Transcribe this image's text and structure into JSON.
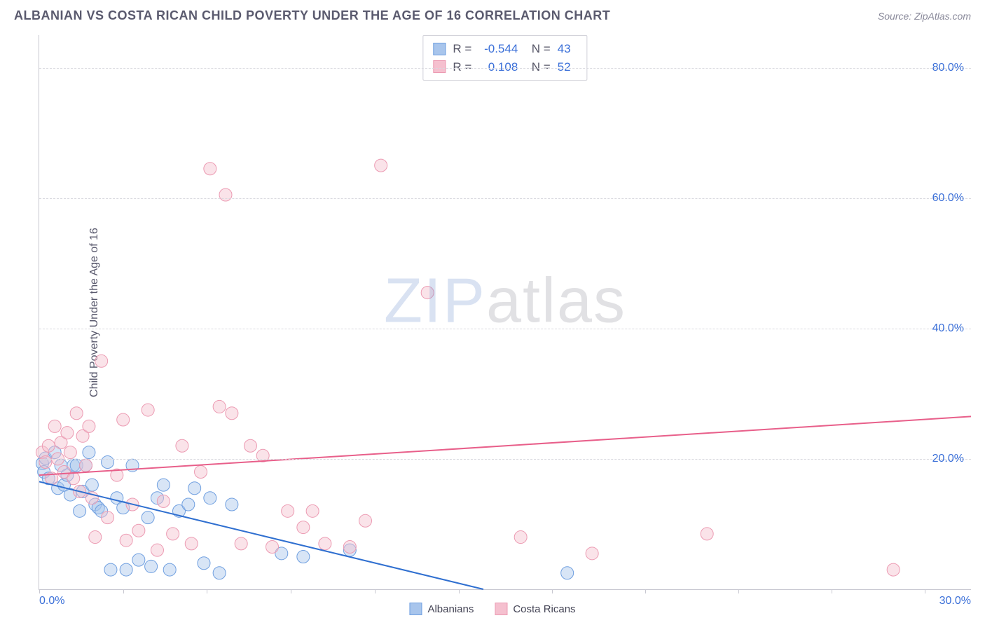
{
  "header": {
    "title": "ALBANIAN VS COSTA RICAN CHILD POVERTY UNDER THE AGE OF 16 CORRELATION CHART",
    "source": "Source: ZipAtlas.com"
  },
  "ylabel": "Child Poverty Under the Age of 16",
  "watermark": {
    "zip": "ZIP",
    "atlas": "atlas"
  },
  "chart": {
    "type": "scatter",
    "xlim": [
      0,
      30
    ],
    "ylim": [
      0,
      85
    ],
    "xtick_positions": [
      0,
      2.7,
      5.4,
      8.1,
      10.8,
      13.5,
      16.5,
      19.5,
      22.5,
      25.5,
      28.5
    ],
    "xtick_labels": {
      "0": "0.0%",
      "30": "30.0%"
    },
    "ytick_positions": [
      20,
      40,
      60,
      80
    ],
    "ytick_labels": [
      "20.0%",
      "40.0%",
      "60.0%",
      "80.0%"
    ],
    "grid_color": "#d8d8de",
    "axis_color": "#c7c7d0",
    "background_color": "#ffffff",
    "marker_radius": 9,
    "marker_opacity": 0.45,
    "line_width": 2,
    "series": [
      {
        "name": "Albanians",
        "color_fill": "#a8c5ec",
        "color_stroke": "#6f9fe0",
        "line_color": "#2f6fd0",
        "r_value": "-0.544",
        "n_value": "43",
        "trend": {
          "x1": 0,
          "y1": 16.5,
          "x2": 14.3,
          "y2": 0
        },
        "points": [
          [
            0.1,
            19.3
          ],
          [
            0.2,
            20.1
          ],
          [
            0.15,
            18.0
          ],
          [
            0.3,
            17.0
          ],
          [
            0.5,
            21.0
          ],
          [
            0.6,
            15.5
          ],
          [
            0.7,
            19.0
          ],
          [
            0.8,
            16.0
          ],
          [
            0.9,
            17.5
          ],
          [
            1.0,
            14.5
          ],
          [
            1.1,
            19.0
          ],
          [
            1.2,
            19.0
          ],
          [
            1.3,
            12.0
          ],
          [
            1.4,
            15.0
          ],
          [
            1.5,
            19.0
          ],
          [
            1.6,
            21.0
          ],
          [
            1.7,
            16.0
          ],
          [
            1.8,
            13.0
          ],
          [
            1.9,
            12.5
          ],
          [
            2.0,
            12.0
          ],
          [
            2.2,
            19.5
          ],
          [
            2.3,
            3.0
          ],
          [
            2.5,
            14.0
          ],
          [
            2.7,
            12.5
          ],
          [
            2.8,
            3.0
          ],
          [
            3.0,
            19.0
          ],
          [
            3.2,
            4.5
          ],
          [
            3.5,
            11.0
          ],
          [
            3.6,
            3.5
          ],
          [
            3.8,
            14.0
          ],
          [
            4.0,
            16.0
          ],
          [
            4.2,
            3.0
          ],
          [
            4.5,
            12.0
          ],
          [
            4.8,
            13.0
          ],
          [
            5.0,
            15.5
          ],
          [
            5.3,
            4.0
          ],
          [
            5.5,
            14.0
          ],
          [
            5.8,
            2.5
          ],
          [
            6.2,
            13.0
          ],
          [
            7.8,
            5.5
          ],
          [
            8.5,
            5.0
          ],
          [
            10.0,
            6.0
          ],
          [
            17.0,
            2.5
          ]
        ]
      },
      {
        "name": "Costa Ricans",
        "color_fill": "#f5c0cf",
        "color_stroke": "#ec9ab2",
        "line_color": "#e85f8a",
        "r_value": "0.108",
        "n_value": "52",
        "trend": {
          "x1": 0,
          "y1": 17.5,
          "x2": 30,
          "y2": 26.5
        },
        "points": [
          [
            0.1,
            21.0
          ],
          [
            0.2,
            19.5
          ],
          [
            0.3,
            22.0
          ],
          [
            0.4,
            17.0
          ],
          [
            0.5,
            25.0
          ],
          [
            0.6,
            20.0
          ],
          [
            0.7,
            22.5
          ],
          [
            0.8,
            18.0
          ],
          [
            0.9,
            24.0
          ],
          [
            1.0,
            21.0
          ],
          [
            1.1,
            17.0
          ],
          [
            1.2,
            27.0
          ],
          [
            1.3,
            15.0
          ],
          [
            1.4,
            23.5
          ],
          [
            1.5,
            19.0
          ],
          [
            1.6,
            25.0
          ],
          [
            1.7,
            14.0
          ],
          [
            1.8,
            8.0
          ],
          [
            2.0,
            35.0
          ],
          [
            2.2,
            11.0
          ],
          [
            2.5,
            17.5
          ],
          [
            2.7,
            26.0
          ],
          [
            2.8,
            7.5
          ],
          [
            3.0,
            13.0
          ],
          [
            3.2,
            9.0
          ],
          [
            3.5,
            27.5
          ],
          [
            3.8,
            6.0
          ],
          [
            4.0,
            13.5
          ],
          [
            4.3,
            8.5
          ],
          [
            4.6,
            22.0
          ],
          [
            4.9,
            7.0
          ],
          [
            5.2,
            18.0
          ],
          [
            5.5,
            64.5
          ],
          [
            5.8,
            28.0
          ],
          [
            6.0,
            60.5
          ],
          [
            6.2,
            27.0
          ],
          [
            6.5,
            7.0
          ],
          [
            6.8,
            22.0
          ],
          [
            7.2,
            20.5
          ],
          [
            7.5,
            6.5
          ],
          [
            8.0,
            12.0
          ],
          [
            8.5,
            9.5
          ],
          [
            8.8,
            12.0
          ],
          [
            9.2,
            7.0
          ],
          [
            10.0,
            6.5
          ],
          [
            10.5,
            10.5
          ],
          [
            11.0,
            65.0
          ],
          [
            12.5,
            45.5
          ],
          [
            15.5,
            8.0
          ],
          [
            17.8,
            5.5
          ],
          [
            21.5,
            8.5
          ],
          [
            27.5,
            3.0
          ]
        ]
      }
    ]
  },
  "legend": {
    "items": [
      {
        "label": "Albanians",
        "fill": "#a8c5ec",
        "stroke": "#6f9fe0"
      },
      {
        "label": "Costa Ricans",
        "fill": "#f5c0cf",
        "stroke": "#ec9ab2"
      }
    ]
  }
}
